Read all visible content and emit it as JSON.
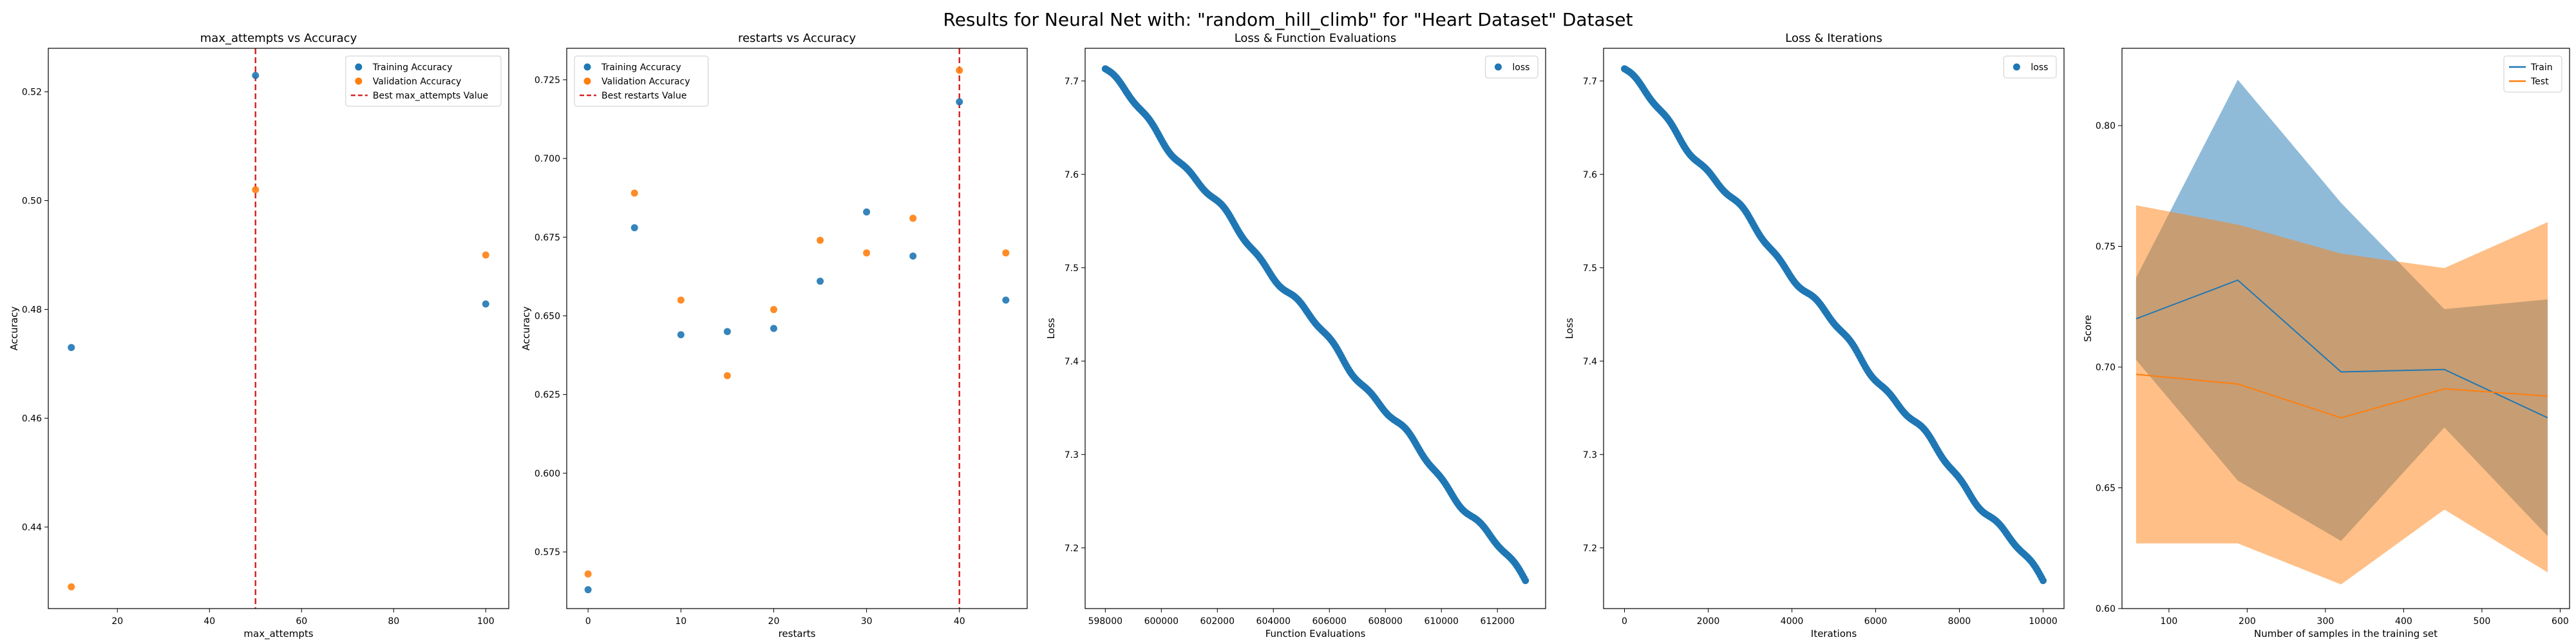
{
  "title": "Results for Neural Net with: \"random_hill_climb\" for \"Heart Dataset\" Dataset",
  "colors": {
    "blue": "#1f77b4",
    "orange": "#ff7f0e",
    "red": "#d62728"
  },
  "chart_data": [
    {
      "type": "scatter",
      "title": "max_attempts vs Accuracy",
      "xlabel": "max_attempts",
      "ylabel": "Accuracy",
      "xlim": [
        5,
        105
      ],
      "ylim": [
        0.425,
        0.528
      ],
      "xticks": [
        20,
        40,
        60,
        80,
        100
      ],
      "yticks": [
        0.44,
        0.46,
        0.48,
        0.5,
        0.52
      ],
      "ytick_decimals": 2,
      "legend": "top-right",
      "series": [
        {
          "name": "Training Accuracy",
          "color": "#1f77b4",
          "x": [
            10,
            50,
            100
          ],
          "y": [
            0.473,
            0.523,
            0.481
          ]
        },
        {
          "name": "Validation Accuracy",
          "color": "#ff7f0e",
          "x": [
            10,
            50,
            100
          ],
          "y": [
            0.429,
            0.502,
            0.49
          ]
        }
      ],
      "vline": {
        "name": "Best max_attempts Value",
        "x": 50,
        "color": "#d62728"
      }
    },
    {
      "type": "scatter",
      "title": "restarts vs Accuracy",
      "xlabel": "restarts",
      "ylabel": "Accuracy",
      "xlim": [
        -2.3,
        47.3
      ],
      "ylim": [
        0.557,
        0.735
      ],
      "xticks": [
        0,
        10,
        20,
        30,
        40
      ],
      "yticks": [
        0.575,
        0.6,
        0.625,
        0.65,
        0.675,
        0.7,
        0.725
      ],
      "ytick_decimals": 3,
      "legend": "top-left",
      "series": [
        {
          "name": "Training Accuracy",
          "color": "#1f77b4",
          "x": [
            0,
            5,
            10,
            15,
            20,
            25,
            30,
            35,
            40,
            45
          ],
          "y": [
            0.563,
            0.678,
            0.644,
            0.645,
            0.646,
            0.661,
            0.683,
            0.669,
            0.718,
            0.655
          ]
        },
        {
          "name": "Validation Accuracy",
          "color": "#ff7f0e",
          "x": [
            0,
            5,
            10,
            15,
            20,
            25,
            30,
            35,
            40,
            45
          ],
          "y": [
            0.568,
            0.689,
            0.655,
            0.631,
            0.652,
            0.674,
            0.67,
            0.681,
            0.728,
            0.67
          ]
        }
      ],
      "vline": {
        "name": "Best restarts Value",
        "x": 40,
        "color": "#d62728"
      }
    },
    {
      "type": "scatter",
      "title": "Loss & Function Evaluations",
      "xlabel": "Function Evaluations",
      "ylabel": "Loss",
      "xlim": [
        597280,
        613720
      ],
      "ylim": [
        7.135,
        7.735
      ],
      "xticks": [
        598000,
        600000,
        602000,
        604000,
        606000,
        608000,
        610000,
        612000
      ],
      "yticks": [
        7.2,
        7.3,
        7.4,
        7.5,
        7.6,
        7.7
      ],
      "ytick_decimals": 1,
      "legend": "top-right",
      "series": [
        {
          "name": "loss",
          "color": "#1f77b4",
          "x_start": 598000,
          "x_end": 613000,
          "y_start": 7.713,
          "y_end": 7.165,
          "points": 300
        }
      ]
    },
    {
      "type": "scatter",
      "title": "Loss & Iterations",
      "xlabel": "Iterations",
      "ylabel": "Loss",
      "xlim": [
        -500,
        10500
      ],
      "ylim": [
        7.135,
        7.735
      ],
      "xticks": [
        0,
        2000,
        4000,
        6000,
        8000,
        10000
      ],
      "yticks": [
        7.2,
        7.3,
        7.4,
        7.5,
        7.6,
        7.7
      ],
      "ytick_decimals": 1,
      "legend": "top-right",
      "series": [
        {
          "name": "loss",
          "color": "#1f77b4",
          "x_start": 0,
          "x_end": 10000,
          "y_start": 7.713,
          "y_end": 7.165,
          "points": 300
        }
      ]
    },
    {
      "type": "line",
      "title": "",
      "xlabel": "Number of samples in the training set",
      "ylabel": "Score",
      "xlim": [
        40,
        612
      ],
      "ylim": [
        0.6,
        0.832
      ],
      "xticks": [
        100,
        200,
        300,
        400,
        500,
        600
      ],
      "yticks": [
        0.6,
        0.65,
        0.7,
        0.75,
        0.8
      ],
      "ytick_decimals": 2,
      "legend": "top-right",
      "x": [
        58,
        188,
        320,
        452,
        584
      ],
      "series": [
        {
          "name": "Train",
          "color": "#1f77b4",
          "mean": [
            0.72,
            0.736,
            0.698,
            0.699,
            0.679
          ],
          "lower": [
            0.703,
            0.653,
            0.628,
            0.675,
            0.63
          ],
          "upper": [
            0.737,
            0.819,
            0.768,
            0.724,
            0.728
          ]
        },
        {
          "name": "Test",
          "color": "#ff7f0e",
          "mean": [
            0.697,
            0.693,
            0.679,
            0.691,
            0.688
          ],
          "lower": [
            0.627,
            0.627,
            0.61,
            0.641,
            0.615
          ],
          "upper": [
            0.767,
            0.759,
            0.747,
            0.741,
            0.76
          ]
        }
      ]
    }
  ]
}
